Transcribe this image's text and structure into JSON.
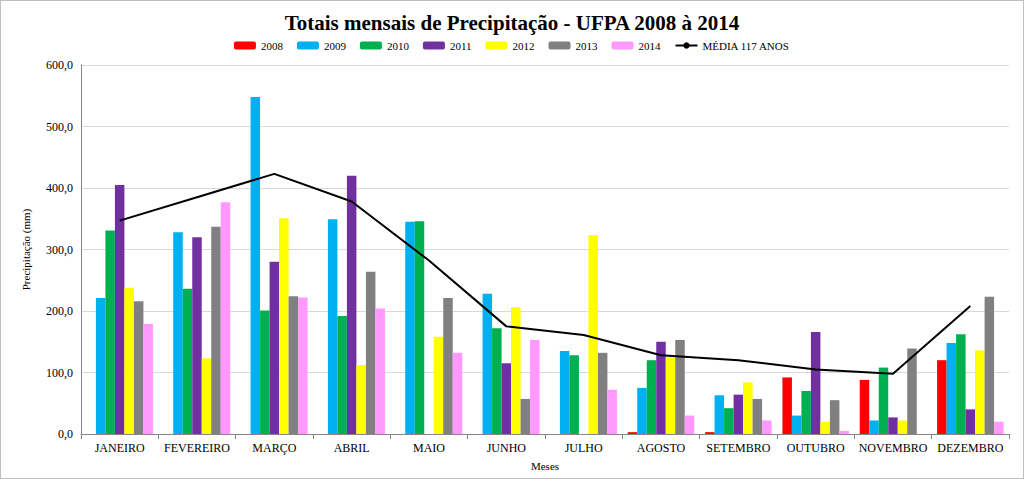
{
  "chart_data": {
    "type": "bar",
    "title": "Totais mensais de Precipitação - UFPA 2008 à 2014",
    "x_label": "Meses",
    "y_label": "Precipitação (mm)",
    "categories": [
      "JANEIRO",
      "FEVEREIRO",
      "MARÇO",
      "ABRIL",
      "MAIO",
      "JUNHO",
      "JULHO",
      "AGOSTO",
      "SETEMBRO",
      "OUTUBRO",
      "NOVEMBRO",
      "DEZEMBRO"
    ],
    "series": [
      {
        "name": "2008",
        "color": "#ff0000",
        "values": [
          null,
          null,
          null,
          null,
          null,
          null,
          null,
          3,
          3,
          92,
          88,
          120
        ]
      },
      {
        "name": "2009",
        "color": "#00b0f0",
        "values": [
          221,
          328,
          548,
          349,
          345,
          228,
          135,
          75,
          63,
          30,
          22,
          148
        ]
      },
      {
        "name": "2010",
        "color": "#00b050",
        "values": [
          331,
          236,
          201,
          192,
          346,
          172,
          128,
          120,
          42,
          70,
          108,
          162
        ]
      },
      {
        "name": "2011",
        "color": "#7030a0",
        "values": [
          405,
          320,
          280,
          420,
          null,
          115,
          null,
          150,
          64,
          166,
          27,
          40
        ]
      },
      {
        "name": "2012",
        "color": "#ffff00",
        "values": [
          238,
          123,
          351,
          112,
          158,
          206,
          323,
          125,
          84,
          20,
          22,
          136
        ]
      },
      {
        "name": "2013",
        "color": "#808080",
        "values": [
          216,
          337,
          224,
          264,
          221,
          57,
          132,
          153,
          57,
          55,
          139,
          223
        ]
      },
      {
        "name": "2014",
        "color": "#ff99ff",
        "values": [
          179,
          377,
          222,
          204,
          132,
          153,
          72,
          30,
          22,
          5,
          null,
          20
        ]
      },
      {
        "name": "MÉDIA 117 ANOS",
        "color": "#000000",
        "type": "line",
        "values": [
          347,
          385,
          423,
          378,
          282,
          175,
          161,
          128,
          120,
          105,
          98,
          208
        ]
      }
    ],
    "ylim": [
      0,
      600
    ],
    "yticks": [
      {
        "value": 0,
        "label": "0,0"
      },
      {
        "value": 100,
        "label": "100,0"
      },
      {
        "value": 200,
        "label": "200,0"
      },
      {
        "value": 300,
        "label": "300,0"
      },
      {
        "value": 400,
        "label": "400,0"
      },
      {
        "value": 500,
        "label": "500,0"
      },
      {
        "value": 600,
        "label": "600,0"
      }
    ],
    "grid": true,
    "legend": "top"
  }
}
